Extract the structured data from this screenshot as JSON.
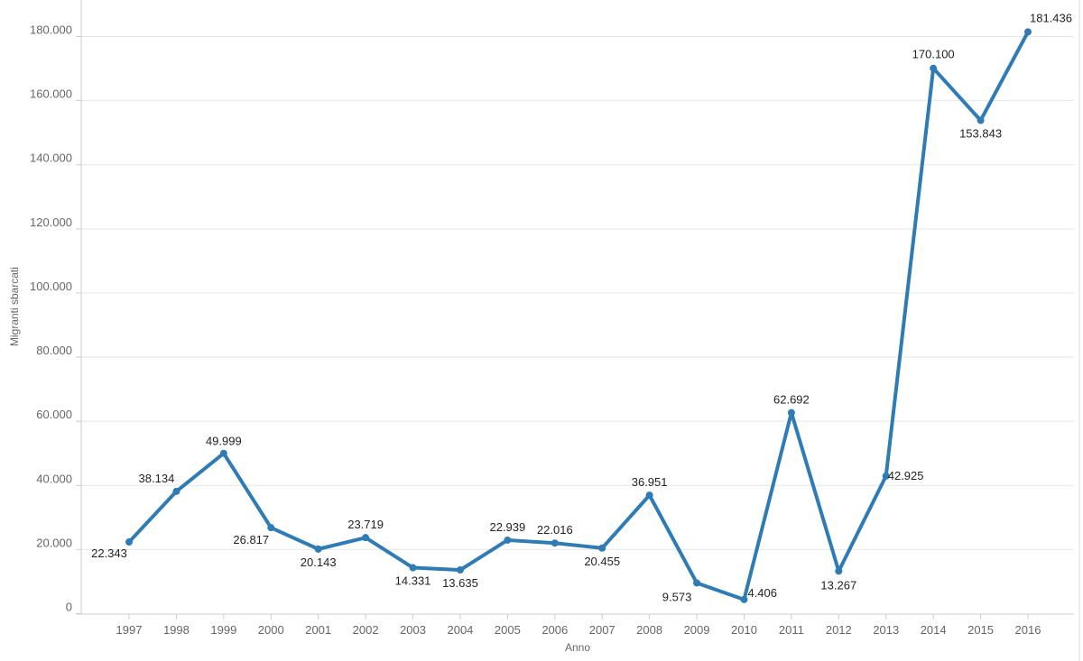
{
  "chart_data": {
    "type": "line",
    "title": "",
    "xlabel": "Anno",
    "ylabel": "Migranti sbarcati",
    "ylim": [
      0,
      180000
    ],
    "yticks": [
      0,
      20000,
      40000,
      60000,
      80000,
      100000,
      120000,
      140000,
      160000,
      180000
    ],
    "ytick_labels": [
      "0",
      "20.000",
      "40.000",
      "60.000",
      "80.000",
      "100.000",
      "120.000",
      "140.000",
      "160.000",
      "180.000"
    ],
    "grid": true,
    "color": "#2e7bb6",
    "categories": [
      "1997",
      "1998",
      "1999",
      "2000",
      "2001",
      "2002",
      "2003",
      "2004",
      "2005",
      "2006",
      "2007",
      "2008",
      "2009",
      "2010",
      "2011",
      "2012",
      "2013",
      "2014",
      "2015",
      "2016"
    ],
    "series": [
      {
        "name": "Migranti sbarcati",
        "values": [
          22343,
          38134,
          49999,
          26817,
          20143,
          23719,
          14331,
          13635,
          22939,
          22016,
          20455,
          36951,
          9573,
          4406,
          62692,
          13267,
          42925,
          170100,
          153843,
          181436
        ],
        "labels": [
          "22.343",
          "38.134",
          "49.999",
          "26.817",
          "20.143",
          "23.719",
          "14.331",
          "13.635",
          "22.939",
          "22.016",
          "20.455",
          "36.951",
          "9.573",
          "4.406",
          "62.692",
          "13.267",
          "42.925",
          "170.100",
          "153.843",
          "181.436"
        ]
      }
    ]
  }
}
